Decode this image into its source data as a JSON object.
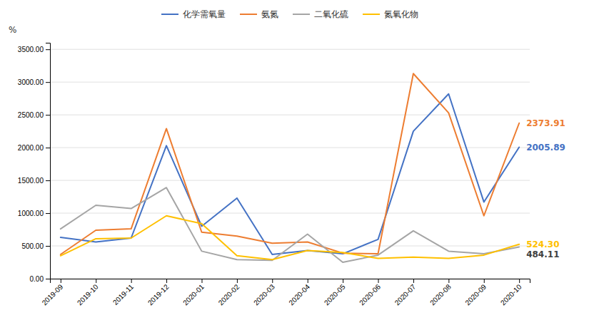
{
  "chart_data": {
    "type": "line",
    "categories": [
      "2019-09",
      "2019-10",
      "2019-11",
      "2019-12",
      "2020-01",
      "2020-02",
      "2020-03",
      "2020-04",
      "2020-05",
      "2020-06",
      "2020-07",
      "2020-08",
      "2020-09",
      "2020-10"
    ],
    "series": [
      {
        "name": "化学需氧量",
        "color": "#4472C4",
        "values": [
          630,
          560,
          620,
          2030,
          800,
          1230,
          370,
          430,
          380,
          600,
          2250,
          2820,
          1170,
          2005.89
        ]
      },
      {
        "name": "氨氮",
        "color": "#ED7D31",
        "values": [
          370,
          740,
          760,
          2290,
          710,
          650,
          540,
          560,
          390,
          380,
          3130,
          2530,
          960,
          2373.91
        ]
      },
      {
        "name": "二氧化硫",
        "color": "#A5A5A5",
        "values": [
          760,
          1120,
          1070,
          1390,
          420,
          290,
          280,
          680,
          250,
          360,
          730,
          420,
          380,
          484.11
        ]
      },
      {
        "name": "氮氧化物",
        "color": "#FFC000",
        "values": [
          350,
          610,
          620,
          960,
          840,
          350,
          290,
          430,
          400,
          310,
          330,
          310,
          360,
          524.3
        ]
      }
    ],
    "annotations": [
      {
        "text": "2005.89",
        "x": "2020-10",
        "y": 2005.89,
        "color": "#4472C4"
      },
      {
        "text": "2373.91",
        "x": "2020-10",
        "y": 2373.91,
        "color": "#ED7D31"
      },
      {
        "text": "484.11",
        "x": "2020-10",
        "y": 484.11,
        "color": "#404040"
      },
      {
        "text": "524.30",
        "x": "2020-10",
        "y": 524.3,
        "color": "#FFC000"
      }
    ],
    "y_label": "%",
    "ylim": [
      0,
      3600
    ],
    "yticks": [
      {
        "value": 0,
        "label": "0.00"
      },
      {
        "value": 500,
        "label": "500.00"
      },
      {
        "value": 1000,
        "label": "1000.00"
      },
      {
        "value": 1500,
        "label": "1500.00"
      },
      {
        "value": 2000,
        "label": "2000.00"
      },
      {
        "value": 2500,
        "label": "2500.00"
      },
      {
        "value": 3000,
        "label": "3000.00"
      },
      {
        "value": 3500,
        "label": "3500.00"
      }
    ],
    "grid": true,
    "legend": "top"
  }
}
